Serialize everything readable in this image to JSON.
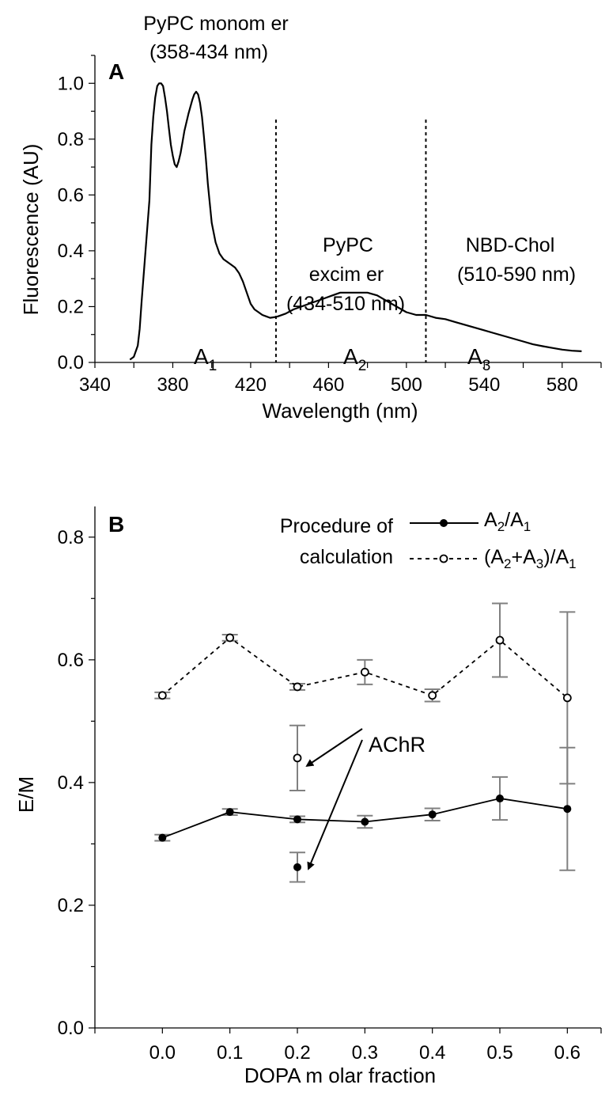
{
  "chart_data": [
    {
      "type": "line",
      "panel_label": "A",
      "xlabel": "Wavelength (nm)",
      "ylabel": "Fluorescence (AU)",
      "xlim": [
        340,
        600
      ],
      "ylim": [
        0,
        1.1
      ],
      "xticks": [
        "340",
        "380",
        "420",
        "460",
        "500",
        "540",
        "580"
      ],
      "yticks": [
        "0.0",
        "0.2",
        "0.4",
        "0.6",
        "0.8",
        "1.0"
      ],
      "grid": false,
      "series": [
        {
          "x": [
            358,
            360,
            362,
            363,
            364,
            366,
            368,
            369,
            370,
            371,
            372,
            373,
            374,
            375,
            376,
            377,
            378,
            379,
            380,
            381,
            382,
            383,
            384,
            385,
            386,
            388,
            390,
            391,
            392,
            393,
            394,
            395,
            396,
            397,
            398,
            400,
            402,
            404,
            406,
            408,
            410,
            412,
            414,
            416,
            418,
            420,
            422,
            424,
            426,
            428,
            430,
            432,
            434,
            438,
            442,
            446,
            450,
            454,
            458,
            462,
            466,
            470,
            475,
            480,
            485,
            490,
            495,
            500,
            505,
            510,
            515,
            520,
            525,
            530,
            535,
            540,
            545,
            550,
            555,
            560,
            565,
            570,
            575,
            580,
            585,
            590
          ],
          "y": [
            0.01,
            0.02,
            0.06,
            0.12,
            0.22,
            0.4,
            0.58,
            0.78,
            0.88,
            0.95,
            0.99,
            1.0,
            1.0,
            0.99,
            0.95,
            0.9,
            0.84,
            0.78,
            0.74,
            0.71,
            0.7,
            0.72,
            0.75,
            0.79,
            0.83,
            0.89,
            0.94,
            0.96,
            0.97,
            0.96,
            0.93,
            0.88,
            0.81,
            0.73,
            0.64,
            0.5,
            0.43,
            0.39,
            0.37,
            0.36,
            0.35,
            0.34,
            0.32,
            0.29,
            0.25,
            0.21,
            0.19,
            0.18,
            0.17,
            0.165,
            0.16,
            0.162,
            0.165,
            0.175,
            0.19,
            0.2,
            0.21,
            0.22,
            0.23,
            0.24,
            0.25,
            0.25,
            0.25,
            0.25,
            0.24,
            0.22,
            0.2,
            0.18,
            0.17,
            0.17,
            0.16,
            0.155,
            0.145,
            0.135,
            0.125,
            0.115,
            0.105,
            0.095,
            0.085,
            0.075,
            0.065,
            0.058,
            0.052,
            0.046,
            0.042,
            0.04
          ]
        }
      ],
      "dividers_at_x": [
        433,
        510
      ],
      "annotations": {
        "monomer_title": "PyPC monom er",
        "monomer_range": "(358-434 nm)",
        "excimer_title_1": "PyPC",
        "excimer_title_2": "excim er",
        "excimer_range": "(434-510 nm)",
        "nbd_title": "NBD-Chol",
        "nbd_range": "(510-590 nm)",
        "area_labels": [
          {
            "base": "A",
            "sub": "1"
          },
          {
            "base": "A",
            "sub": "2"
          },
          {
            "base": "A",
            "sub": "3"
          }
        ]
      }
    },
    {
      "type": "line",
      "panel_label": "B",
      "xlabel": "DOPA m olar fraction",
      "ylabel": "E/M",
      "xlim": [
        -0.1,
        0.65
      ],
      "ylim": [
        0,
        0.85
      ],
      "xticks": [
        "0.0",
        "0.1",
        "0.2",
        "0.3",
        "0.4",
        "0.5",
        "0.6"
      ],
      "yticks": [
        "0.0",
        "0.2",
        "0.4",
        "0.6",
        "0.8"
      ],
      "grid": false,
      "legend_placement": "top-right",
      "legend_title_1": "Procedure of",
      "legend_title_2": "calculation",
      "series": [
        {
          "name": "A2/A1",
          "x": [
            0.0,
            0.1,
            0.2,
            0.3,
            0.4,
            0.5,
            0.6
          ],
          "y": [
            0.31,
            0.352,
            0.34,
            0.336,
            0.348,
            0.374,
            0.357
          ],
          "err": [
            0.005,
            0.005,
            0.005,
            0.01,
            0.01,
            0.035,
            0.1
          ],
          "marker": "filled",
          "line": "solid"
        },
        {
          "name": "(A2+A3)/A1",
          "x": [
            0.0,
            0.1,
            0.2,
            0.3,
            0.4,
            0.5,
            0.6
          ],
          "y": [
            0.542,
            0.636,
            0.556,
            0.58,
            0.542,
            0.632,
            0.538
          ],
          "err": [
            0.005,
            0.005,
            0.005,
            0.02,
            0.01,
            0.06,
            0.14
          ],
          "marker": "open",
          "line": "dashed"
        }
      ],
      "legend_entries": [
        {
          "base": "A",
          "sub1": "2",
          "mid": "/A",
          "sub2": "1",
          "tail": ""
        },
        {
          "base": "(A",
          "sub1": "2",
          "mid": "+A",
          "sub2": "3",
          "mid2": ")/A",
          "sub3": "1"
        }
      ],
      "achr_points": [
        {
          "x": 0.2,
          "y": 0.262,
          "err": 0.024,
          "marker": "filled"
        },
        {
          "x": 0.2,
          "y": 0.44,
          "err": 0.053,
          "marker": "open"
        }
      ],
      "achr_label": "AChR",
      "colors": {
        "line": "#000000",
        "errorbar": "#808080"
      }
    }
  ]
}
